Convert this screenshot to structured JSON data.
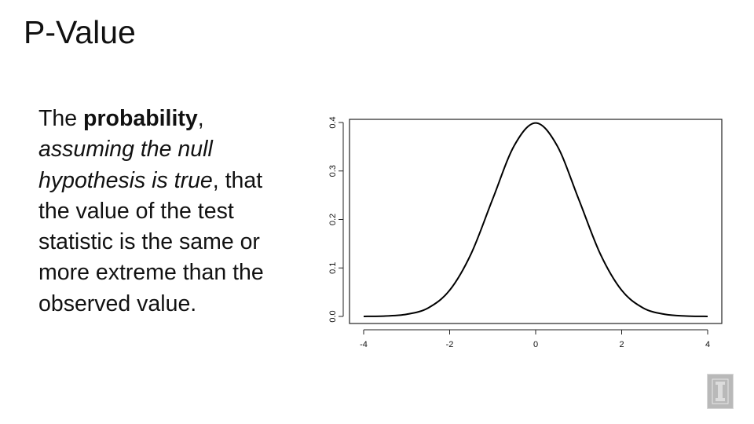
{
  "slide": {
    "title": "P-Value",
    "definition": {
      "part1": "The ",
      "bold": "probability",
      "part2": ", ",
      "italic": "assuming the null hypothesis is true",
      "part3": ", that the value of the test statistic is the same or more extreme than the observed value."
    }
  },
  "chart_data": {
    "type": "line",
    "title": "",
    "xlabel": "",
    "ylabel": "",
    "xlim": [
      -4,
      4
    ],
    "ylim": [
      0,
      0.4
    ],
    "x_ticks": [
      -4,
      -2,
      0,
      2,
      4
    ],
    "y_ticks": [
      0.0,
      0.1,
      0.2,
      0.3,
      0.4
    ],
    "x_tick_labels": [
      "-4",
      "-2",
      "0",
      "2",
      "4"
    ],
    "y_tick_labels": [
      "0.0",
      "0.1",
      "0.2",
      "0.3",
      "0.4"
    ],
    "grid": false,
    "series": [
      {
        "x": [
          -4,
          -3.5,
          -3,
          -2.5,
          -2,
          -1.5,
          -1,
          -0.5,
          0,
          0.5,
          1,
          1.5,
          2,
          2.5,
          3,
          3.5,
          4
        ],
        "values": [
          0.0001,
          0.0009,
          0.0044,
          0.0175,
          0.054,
          0.1295,
          0.242,
          0.352,
          0.399,
          0.352,
          0.242,
          0.1295,
          0.054,
          0.0175,
          0.0044,
          0.0009,
          0.0001
        ]
      }
    ],
    "colors": {
      "line": "#000000",
      "frame": "#222222"
    }
  },
  "logo": {
    "icon": "university-block-i-icon",
    "color": "#b9b9b9"
  }
}
